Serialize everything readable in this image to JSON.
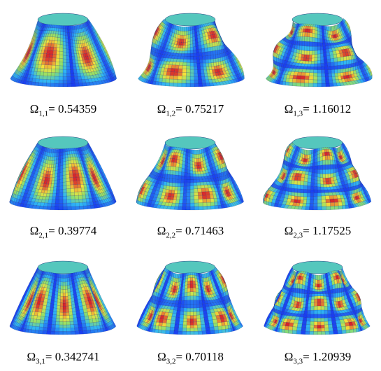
{
  "modes": [
    {
      "symbol": "Ω",
      "sub": "1,1",
      "sep": "= ",
      "value": "0.54359",
      "m": 1,
      "n": 1
    },
    {
      "symbol": "Ω",
      "sub": "1,2",
      "sep": "=  ",
      "value": "0.75217",
      "m": 1,
      "n": 2
    },
    {
      "symbol": "Ω",
      "sub": "1,3",
      "sep": "=  ",
      "value": "1.16012",
      "m": 1,
      "n": 3
    },
    {
      "symbol": "Ω",
      "sub": "2,1",
      "sep": "= ",
      "value": "0.39774",
      "m": 2,
      "n": 1
    },
    {
      "symbol": "Ω",
      "sub": "2,2",
      "sep": "=  ",
      "value": "0.71463",
      "m": 2,
      "n": 2
    },
    {
      "symbol": "Ω",
      "sub": "2,3",
      "sep": "= ",
      "value": "1.17525",
      "m": 2,
      "n": 3
    },
    {
      "symbol": "Ω",
      "sub": "3,1",
      "sep": "= ",
      "value": "0.342741",
      "m": 3,
      "n": 1
    },
    {
      "symbol": "Ω",
      "sub": "3,2",
      "sep": "= ",
      "value": "0.70118",
      "m": 3,
      "n": 2
    },
    {
      "symbol": "Ω",
      "sub": "3,3",
      "sep": "= ",
      "value": "1.20939",
      "m": 3,
      "n": 3
    }
  ],
  "colors": {
    "base": "#1a3cf0",
    "mid": "#2fb6f5",
    "green": "#8fe06a",
    "yellow": "#f4e23a",
    "red": "#d8202a",
    "mesh": "#0a1a6a"
  }
}
